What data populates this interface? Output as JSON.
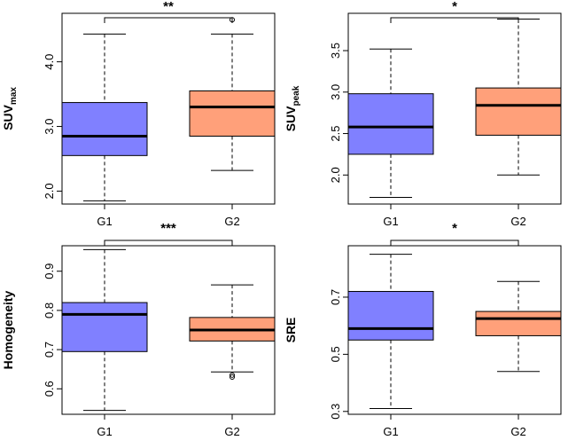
{
  "chart_data": [
    {
      "type": "boxplot",
      "ylabel": "SUV",
      "ylabel_sub": "max",
      "categories": [
        "G1",
        "G2"
      ],
      "ylim": [
        1.8,
        4.75
      ],
      "yticks": [
        2.0,
        3.0,
        4.0
      ],
      "ytick_labels": [
        "2.0",
        "3.0",
        "4.0"
      ],
      "boxes": [
        {
          "name": "G1",
          "color": "#8080FF",
          "min": 1.85,
          "q1": 2.55,
          "median": 2.85,
          "q3": 3.37,
          "max": 4.43,
          "outliers": []
        },
        {
          "name": "G2",
          "color": "#FFA07A",
          "min": 2.32,
          "q1": 2.85,
          "median": 3.3,
          "q3": 3.55,
          "max": 4.43,
          "outliers": [
            4.65
          ]
        }
      ],
      "significance": "**"
    },
    {
      "type": "boxplot",
      "ylabel": "SUV",
      "ylabel_sub": "peak",
      "categories": [
        "G1",
        "G2"
      ],
      "ylim": [
        1.65,
        3.95
      ],
      "yticks": [
        2.0,
        2.5,
        3.0,
        3.5
      ],
      "ytick_labels": [
        "2.0",
        "2.5",
        "3.0",
        "3.5"
      ],
      "boxes": [
        {
          "name": "G1",
          "color": "#8080FF",
          "min": 1.73,
          "q1": 2.25,
          "median": 2.58,
          "q3": 2.98,
          "max": 3.52,
          "outliers": []
        },
        {
          "name": "G2",
          "color": "#FFA07A",
          "min": 2.0,
          "q1": 2.48,
          "median": 2.84,
          "q3": 3.05,
          "max": 3.88,
          "outliers": []
        }
      ],
      "significance": "*"
    },
    {
      "type": "boxplot",
      "ylabel": "Homogeneity",
      "ylabel_sub": "",
      "categories": [
        "G1",
        "G2"
      ],
      "ylim": [
        0.535,
        0.965
      ],
      "yticks": [
        0.6,
        0.7,
        0.8,
        0.9
      ],
      "ytick_labels": [
        "0.6",
        "0.7",
        "0.8",
        "0.9"
      ],
      "boxes": [
        {
          "name": "G1",
          "color": "#8080FF",
          "min": 0.545,
          "q1": 0.695,
          "median": 0.79,
          "q3": 0.82,
          "max": 0.955,
          "outliers": []
        },
        {
          "name": "G2",
          "color": "#FFA07A",
          "min": 0.643,
          "q1": 0.722,
          "median": 0.75,
          "q3": 0.782,
          "max": 0.865,
          "outliers": [
            0.63,
            0.635
          ]
        }
      ],
      "significance": "***"
    },
    {
      "type": "boxplot",
      "ylabel": "SRE",
      "ylabel_sub": "",
      "categories": [
        "G1",
        "G2"
      ],
      "ylim": [
        0.29,
        0.88
      ],
      "yticks": [
        0.3,
        0.5,
        0.7
      ],
      "ytick_labels": [
        "0.3",
        "0.5",
        "0.7"
      ],
      "boxes": [
        {
          "name": "G1",
          "color": "#8080FF",
          "min": 0.31,
          "q1": 0.55,
          "median": 0.59,
          "q3": 0.72,
          "max": 0.85,
          "outliers": []
        },
        {
          "name": "G2",
          "color": "#FFA07A",
          "min": 0.44,
          "q1": 0.565,
          "median": 0.625,
          "q3": 0.65,
          "max": 0.755,
          "outliers": []
        }
      ],
      "significance": "*"
    }
  ]
}
